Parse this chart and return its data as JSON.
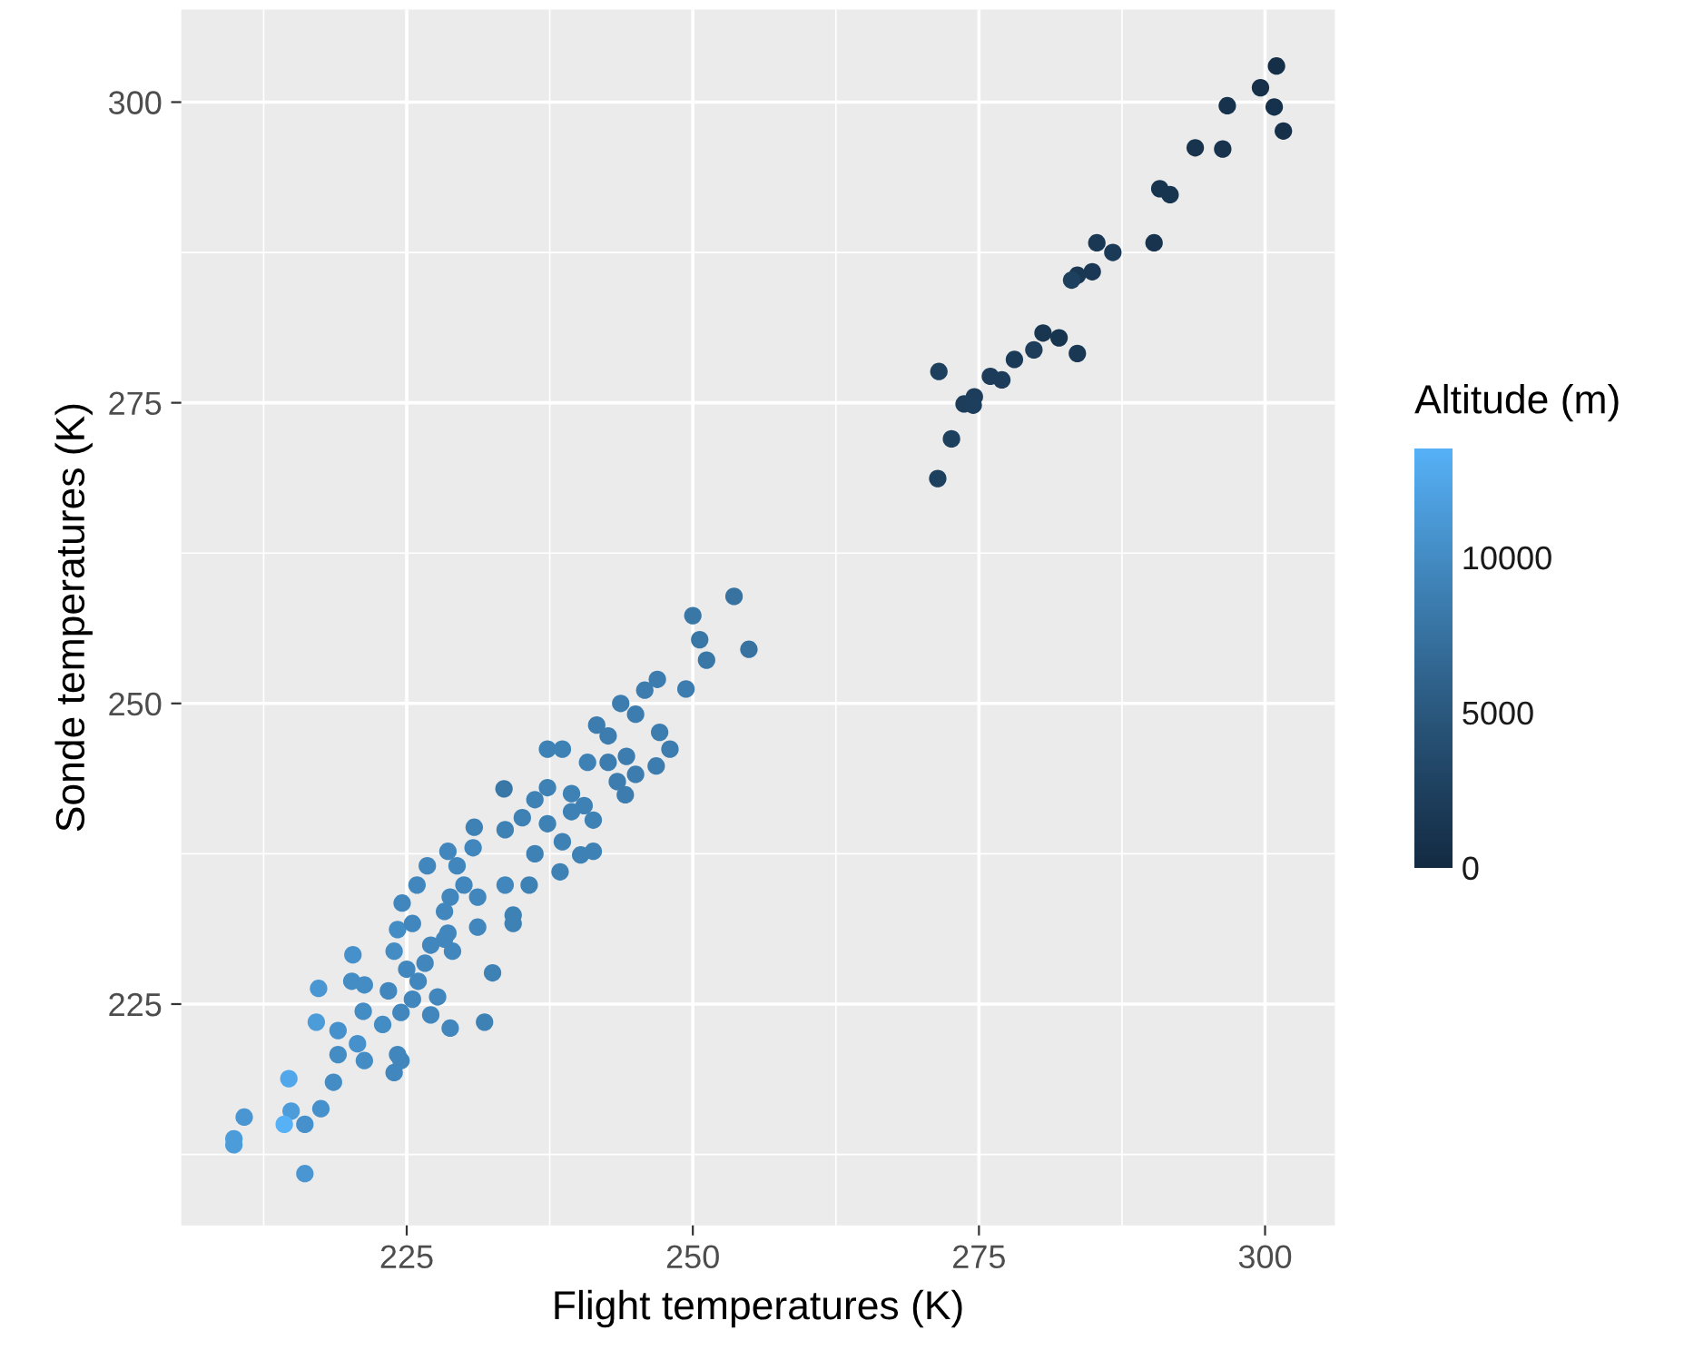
{
  "chart_data": {
    "type": "scatter",
    "xlabel": "Flight temperatures (K)",
    "ylabel": "Sonde temperatures (K)",
    "clabel": "Altitude (m)",
    "xlim": [
      205.3,
      306.1
    ],
    "ylim": [
      206.6,
      307.7
    ],
    "xticks": [
      225,
      250,
      275,
      300
    ],
    "yticks": [
      225,
      250,
      275,
      300
    ],
    "clim": [
      0,
      13500
    ],
    "cticks": [
      0,
      5000,
      10000
    ],
    "grid": true,
    "marker": "circle",
    "series": [
      {
        "x": [
          301.0,
          299.6,
          296.7,
          300.8,
          301.6,
          293.9,
          296.3,
          290.8,
          291.7,
          290.3,
          285.3,
          286.7,
          284.9,
          283.6,
          283.1,
          280.6,
          282.0,
          283.6,
          279.8,
          278.1,
          276.0,
          277.0,
          271.5,
          274.6,
          273.7,
          274.5,
          272.6,
          271.4,
          253.6,
          250.0,
          254.9,
          250.6,
          251.2,
          249.4,
          246.9,
          245.8,
          243.7,
          245.0,
          241.6,
          242.6,
          247.1,
          248.0,
          246.8,
          244.2,
          245.0,
          244.1,
          240.8,
          237.3,
          238.6,
          233.5,
          237.3,
          236.2,
          239.4,
          240.5,
          235.1,
          241.3,
          237.3,
          230.9,
          233.6,
          238.6,
          241.3,
          240.2,
          228.6,
          230.8,
          236.2,
          226.8,
          229.4,
          238.4,
          225.9,
          233.6,
          235.7,
          228.8,
          231.2,
          224.6,
          234.3,
          228.3,
          224.2,
          225.5,
          231.2,
          234.3,
          228.6,
          227.1,
          223.9,
          229.0,
          220.3,
          232.5,
          226.0,
          220.2,
          221.3,
          217.3,
          223.4,
          225.5,
          227.7,
          221.2,
          224.5,
          222.9,
          231.8,
          228.8,
          227.1,
          217.1,
          219.0,
          220.7,
          219.0,
          221.3,
          224.2,
          224.5,
          223.9,
          218.6,
          214.7,
          217.5,
          214.9,
          210.8,
          214.3,
          216.1,
          209.9,
          209.9,
          216.1,
          239.4,
          242.6,
          243.4,
          230.0,
          228.3,
          226.6,
          225.0
        ],
        "values": [
          303.0,
          301.2,
          299.7,
          299.6,
          297.6,
          296.2,
          296.1,
          292.8,
          292.3,
          288.3,
          288.3,
          287.5,
          285.9,
          285.6,
          285.2,
          280.8,
          280.4,
          279.1,
          279.4,
          278.6,
          277.2,
          276.9,
          277.6,
          275.5,
          274.9,
          274.8,
          272.0,
          268.7,
          258.9,
          257.3,
          254.5,
          255.3,
          253.6,
          251.2,
          252.0,
          251.1,
          250.0,
          249.1,
          248.2,
          247.3,
          247.6,
          246.2,
          244.8,
          245.6,
          244.1,
          242.4,
          245.1,
          246.2,
          246.2,
          242.9,
          243.0,
          242.0,
          242.5,
          241.5,
          240.5,
          240.3,
          240.0,
          239.7,
          239.5,
          238.5,
          237.7,
          237.4,
          237.7,
          238.0,
          237.5,
          236.5,
          236.5,
          236.0,
          234.9,
          234.9,
          234.9,
          233.9,
          233.9,
          233.4,
          232.4,
          232.7,
          231.2,
          231.7,
          231.4,
          231.7,
          230.9,
          229.9,
          229.4,
          229.4,
          229.1,
          227.6,
          226.9,
          226.9,
          226.6,
          226.3,
          226.1,
          225.4,
          225.6,
          224.4,
          224.3,
          223.3,
          223.5,
          223.0,
          224.1,
          223.5,
          222.8,
          221.7,
          220.8,
          220.3,
          220.8,
          220.3,
          219.3,
          218.5,
          218.8,
          216.3,
          216.1,
          215.6,
          215.0,
          215.0,
          213.8,
          213.3,
          210.9,
          241.0,
          245.1,
          243.5,
          234.9,
          230.4,
          228.4,
          227.9
        ],
        "cvalues": [
          500,
          600,
          800,
          700,
          600,
          900,
          900,
          1200,
          1200,
          1000,
          1500,
          1800,
          1600,
          1500,
          2500,
          1300,
          1200,
          1500,
          2200,
          1800,
          2000,
          2000,
          2500,
          2200,
          2200,
          2300,
          2500,
          2500,
          7500,
          8000,
          7500,
          8000,
          8000,
          8500,
          8500,
          8500,
          8500,
          8500,
          8500,
          8500,
          8500,
          8500,
          8500,
          8500,
          8500,
          8500,
          9000,
          9000,
          9000,
          8000,
          9000,
          9000,
          9000,
          9000,
          9000,
          9000,
          9000,
          9000,
          9000,
          9000,
          9000,
          9000,
          9500,
          9500,
          9000,
          9500,
          9500,
          9000,
          9500,
          9500,
          9000,
          9500,
          9500,
          9500,
          9000,
          9500,
          10000,
          9500,
          9500,
          9000,
          9500,
          9500,
          10000,
          9500,
          10500,
          9000,
          9500,
          10000,
          10000,
          11000,
          9500,
          9500,
          9500,
          10000,
          9500,
          10000,
          9000,
          9500,
          9500,
          11500,
          10500,
          10500,
          10000,
          10000,
          9500,
          9500,
          9500,
          10000,
          12500,
          10500,
          11500,
          11000,
          13500,
          10500,
          11500,
          11500,
          11000,
          9000,
          8500,
          8500,
          9500,
          9500,
          9500,
          9500
        ]
      }
    ]
  }
}
